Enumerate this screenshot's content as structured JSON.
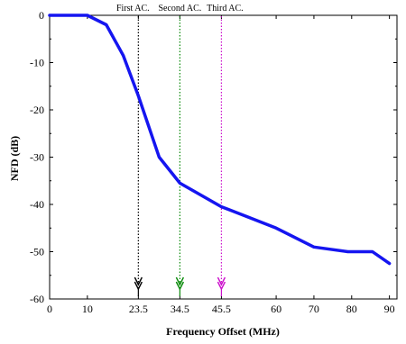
{
  "chart_data": {
    "type": "line",
    "title": "",
    "xlabel": "Frequency Offset (MHz)",
    "ylabel": "NFD (dB)",
    "xlim": [
      0,
      92
    ],
    "ylim": [
      -60,
      0
    ],
    "xticks": [
      0,
      10,
      23.5,
      34.5,
      45.5,
      60,
      70,
      80,
      90
    ],
    "xtick_labels": [
      "0",
      "10",
      "23.5",
      "34.5",
      "45.5",
      "60",
      "70",
      "80",
      "90"
    ],
    "yticks": [
      0,
      -10,
      -20,
      -30,
      -40,
      -50,
      -60
    ],
    "ytick_labels": [
      "0",
      "-10",
      "-20",
      "-30",
      "-40",
      "-50",
      "-60"
    ],
    "grid": false,
    "series": [
      {
        "color": "#1515f0",
        "x": [
          0,
          10,
          15,
          19.5,
          23.5,
          29,
          34.5,
          40,
          45.5,
          52,
          60,
          70,
          79,
          85.5,
          90
        ],
        "y": [
          0,
          0,
          -2,
          -8.5,
          -17,
          -30,
          -35.5,
          -38,
          -40.5,
          -42.5,
          -45,
          -49,
          -50,
          -50,
          -52.5
        ]
      }
    ],
    "annotations": [
      {
        "text": "First AC.",
        "x": 23.5,
        "color": "#000000"
      },
      {
        "text": "Second AC.",
        "x": 34.5,
        "color": "#0a8a0a"
      },
      {
        "text": "Third AC.",
        "x": 45.5,
        "color": "#cc11cc"
      }
    ]
  }
}
